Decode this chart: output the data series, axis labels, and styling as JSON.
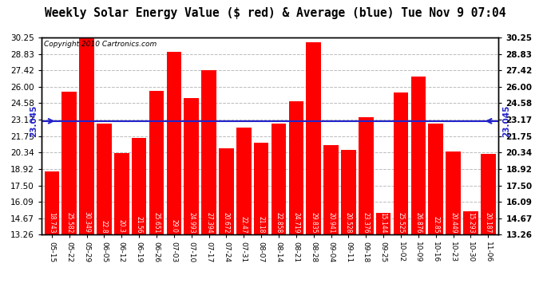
{
  "title": "Weekly Solar Energy Value ($ red) & Average (blue) Tue Nov 9 07:04",
  "copyright": "Copyright 2010 Cartronics.com",
  "average": 23.045,
  "average_label": "23.045",
  "bar_color": "#ff0000",
  "avg_line_color": "#2222cc",
  "categories": [
    "05-15",
    "05-22",
    "05-29",
    "06-05",
    "06-12",
    "06-19",
    "06-26",
    "07-03",
    "07-10",
    "07-17",
    "07-24",
    "07-31",
    "08-07",
    "08-14",
    "08-21",
    "08-28",
    "09-04",
    "09-11",
    "09-18",
    "09-25",
    "10-02",
    "10-09",
    "10-16",
    "10-23",
    "10-30",
    "11-06"
  ],
  "values": [
    18.743,
    25.582,
    30.349,
    22.8,
    20.3,
    21.56,
    25.651,
    29.0,
    24.993,
    27.394,
    20.672,
    22.47,
    21.18,
    22.858,
    24.719,
    29.835,
    20.941,
    20.528,
    23.376,
    15.144,
    25.525,
    26.876,
    22.85,
    20.449,
    15.293,
    20.187
  ],
  "ylim_min": 13.26,
  "ylim_max": 30.25,
  "yticks": [
    13.26,
    14.67,
    16.09,
    17.5,
    18.92,
    20.34,
    21.75,
    23.17,
    24.58,
    26.0,
    27.42,
    28.83,
    30.25
  ],
  "background_color": "#ffffff",
  "plot_bg_color": "#ffffff",
  "grid_color": "#aaaaaa",
  "title_fontsize": 10.5,
  "copyright_fontsize": 6.5,
  "bar_label_fontsize": 5.5,
  "avg_label_fontsize": 7.5,
  "ytick_fontsize": 7.5,
  "xtick_fontsize": 6.5
}
